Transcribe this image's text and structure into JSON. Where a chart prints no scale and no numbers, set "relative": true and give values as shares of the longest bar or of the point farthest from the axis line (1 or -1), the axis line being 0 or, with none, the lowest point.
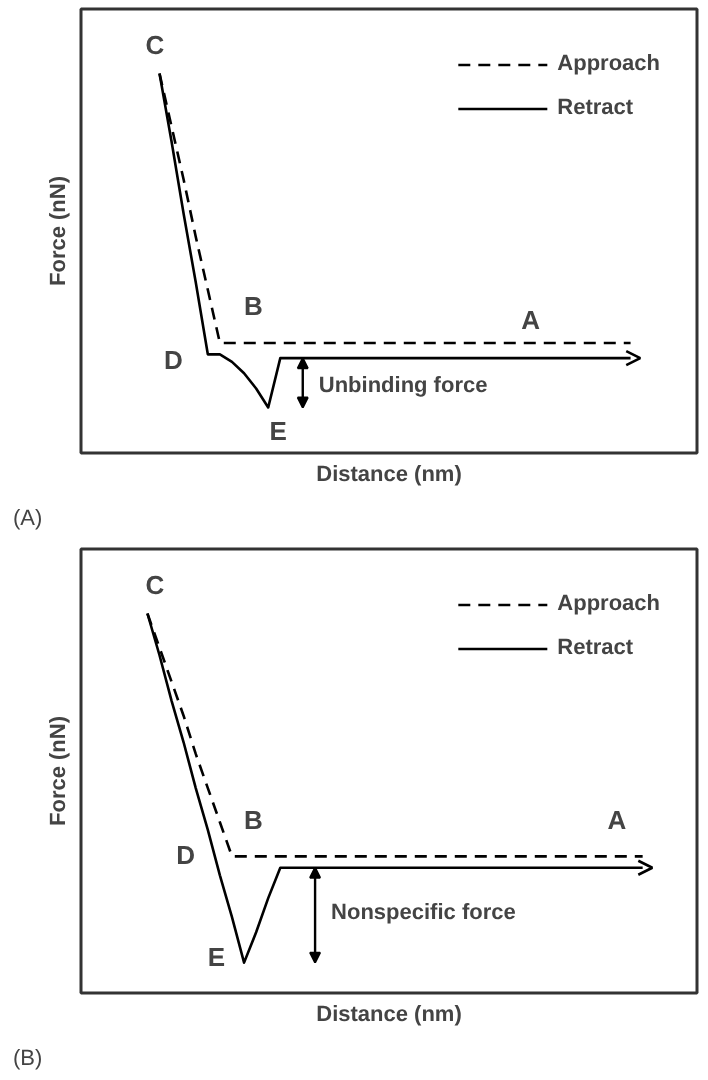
{
  "chart_data": [
    {
      "type": "line",
      "relative": true,
      "xlabel": "Distance (nm)",
      "ylabel": "Force (nN)",
      "legend": "top right",
      "categories": [
        null,
        null,
        null,
        null,
        null,
        null,
        null,
        null,
        null,
        null,
        null,
        null,
        null,
        null,
        null,
        null,
        null,
        null,
        null,
        null,
        null,
        null,
        null,
        null,
        null,
        null,
        null,
        null,
        null,
        null,
        null,
        null,
        null,
        null,
        null,
        null,
        null,
        null,
        null,
        null,
        null,
        null,
        null,
        null,
        null,
        null,
        null,
        null,
        null,
        null,
        null
      ],
      "series": [
        {
          "name": "Approach",
          "color": "#000000",
          "line_style": "dashed",
          "values": [
            null,
            null,
            null,
            null,
            null,
            null,
            1,
            0.86,
            0.72,
            0.57,
            0.43,
            0.29,
            0.29,
            0.29,
            0.29,
            0.29,
            0.29,
            0.29,
            0.29,
            0.29,
            0.29,
            0.29,
            0.29,
            0.29,
            0.29,
            0.29,
            0.29,
            0.29,
            0.29,
            0.29,
            0.29,
            0.29,
            0.29,
            0.29,
            0.29,
            0.29,
            0.29,
            0.29,
            0.29,
            0.29,
            0.29,
            0.29,
            0.29,
            0.29,
            0.29,
            0.29,
            null,
            null,
            null,
            null,
            null
          ]
        },
        {
          "name": "Retract",
          "color": "#000000",
          "line_style": "solid",
          "values": [
            null,
            null,
            null,
            null,
            null,
            null,
            1,
            0.82,
            0.63,
            0.45,
            0.26,
            0.26,
            0.24,
            0.21,
            0.17,
            0.12,
            0.25,
            0.25,
            0.25,
            0.25,
            0.25,
            0.25,
            0.25,
            0.25,
            0.25,
            0.25,
            0.25,
            0.25,
            0.25,
            0.25,
            0.25,
            0.25,
            0.25,
            0.25,
            0.25,
            0.25,
            0.25,
            0.25,
            0.25,
            0.25,
            0.25,
            0.25,
            0.25,
            0.25,
            0.25,
            0.25,
            null,
            null,
            null,
            null,
            null
          ]
        }
      ],
      "annotations": [
        "A",
        "B",
        "C",
        "D",
        "E",
        "Unbinding force",
        "(A)"
      ]
    },
    {
      "type": "line",
      "relative": true,
      "xlabel": "Distance (nm)",
      "ylabel": "Force (nN)",
      "legend": "top right",
      "categories": [
        null,
        null,
        null,
        null,
        null,
        null,
        null,
        null,
        null,
        null,
        null,
        null,
        null,
        null,
        null,
        null,
        null,
        null,
        null,
        null,
        null,
        null,
        null,
        null,
        null,
        null,
        null,
        null,
        null,
        null,
        null,
        null,
        null,
        null,
        null,
        null,
        null,
        null,
        null,
        null,
        null,
        null,
        null,
        null,
        null,
        null,
        null,
        null,
        null,
        null,
        null
      ],
      "series": [
        {
          "name": "Approach",
          "color": "#000000",
          "line_style": "dashed",
          "values": [
            null,
            null,
            null,
            null,
            null,
            1,
            0.91,
            0.82,
            0.73,
            0.63,
            0.54,
            0.45,
            0.36,
            0.36,
            0.36,
            0.36,
            0.36,
            0.36,
            0.36,
            0.36,
            0.36,
            0.36,
            0.36,
            0.36,
            0.36,
            0.36,
            0.36,
            0.36,
            0.36,
            0.36,
            0.36,
            0.36,
            0.36,
            0.36,
            0.36,
            0.36,
            0.36,
            0.36,
            0.36,
            0.36,
            0.36,
            0.36,
            0.36,
            0.36,
            0.36,
            0.36,
            0.36,
            null,
            null,
            null,
            null
          ]
        },
        {
          "name": "Retract",
          "color": "#000000",
          "line_style": "solid",
          "values": [
            null,
            null,
            null,
            null,
            null,
            1,
            0.89,
            0.77,
            0.66,
            0.54,
            0.43,
            0.31,
            0.2,
            0.08,
            0.16,
            0.25,
            0.33,
            0.33,
            0.33,
            0.33,
            0.33,
            0.33,
            0.33,
            0.33,
            0.33,
            0.33,
            0.33,
            0.33,
            0.33,
            0.33,
            0.33,
            0.33,
            0.33,
            0.33,
            0.33,
            0.33,
            0.33,
            0.33,
            0.33,
            0.33,
            0.33,
            0.33,
            0.33,
            0.33,
            0.33,
            0.33,
            0.33,
            null,
            null,
            null,
            null
          ]
        }
      ],
      "annotations": [
        "A",
        "B",
        "C",
        "D",
        "E",
        "Nonspecific force",
        "(B)"
      ]
    }
  ]
}
